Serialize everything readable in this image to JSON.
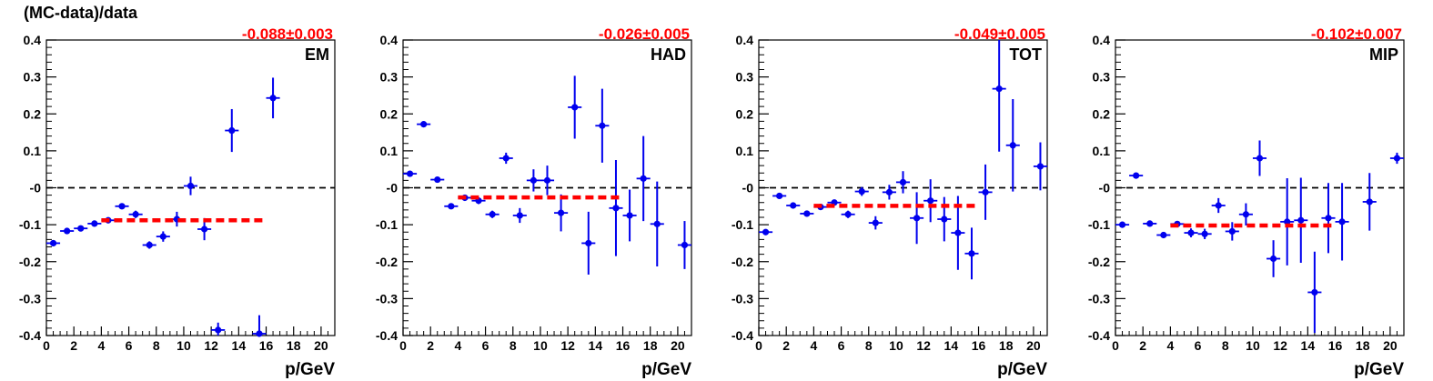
{
  "figure": {
    "ylabel": "(MC-data)/data",
    "xlabel": "p/GeV"
  },
  "style": {
    "marker_color": "#0000ee",
    "fit_color": "#ff0000",
    "zero_line_color": "#000000"
  },
  "chart_data": [
    {
      "type": "scatter",
      "panel_label": "EM",
      "fit_text": "-0.088±0.003",
      "fit_value": -0.088,
      "fit_range": [
        4,
        16
      ],
      "xlabel": "p/GeV",
      "xlim": [
        0,
        21
      ],
      "ylim": [
        -0.4,
        0.4
      ],
      "xticks": [
        0,
        2,
        4,
        6,
        8,
        10,
        12,
        14,
        16,
        18,
        20
      ],
      "yticks": [
        -0.4,
        -0.3,
        -0.2,
        -0.1,
        0,
        0.1,
        0.2,
        0.3,
        0.4
      ],
      "ytick_labels": [
        "-0.4",
        "-0.3",
        "-0.2",
        "-0.1",
        "-0",
        "0.1",
        "0.2",
        "0.3",
        "0.4"
      ],
      "points": [
        {
          "x": 0.5,
          "y": -0.15,
          "err": 0.008
        },
        {
          "x": 1.5,
          "y": -0.117,
          "err": 0.006
        },
        {
          "x": 2.5,
          "y": -0.11,
          "err": 0.006
        },
        {
          "x": 3.5,
          "y": -0.097,
          "err": 0.007
        },
        {
          "x": 4.5,
          "y": -0.088,
          "err": 0.008
        },
        {
          "x": 5.5,
          "y": -0.05,
          "err": 0.008
        },
        {
          "x": 6.5,
          "y": -0.072,
          "err": 0.01
        },
        {
          "x": 7.5,
          "y": -0.155,
          "err": 0.01
        },
        {
          "x": 8.5,
          "y": -0.132,
          "err": 0.014
        },
        {
          "x": 9.5,
          "y": -0.085,
          "err": 0.02
        },
        {
          "x": 10.5,
          "y": 0.005,
          "err": 0.025
        },
        {
          "x": 11.5,
          "y": -0.112,
          "err": 0.03
        },
        {
          "x": 12.5,
          "y": -0.385,
          "err": 0.02
        },
        {
          "x": 13.5,
          "y": 0.155,
          "err": 0.058
        },
        {
          "x": 15.5,
          "y": -0.395,
          "err": 0.05
        },
        {
          "x": 16.5,
          "y": 0.243,
          "err": 0.055
        }
      ]
    },
    {
      "type": "scatter",
      "panel_label": "HAD",
      "fit_text": "-0.026±0.005",
      "fit_value": -0.026,
      "fit_range": [
        4,
        16
      ],
      "xlabel": "p/GeV",
      "xlim": [
        0,
        21
      ],
      "ylim": [
        -0.4,
        0.4
      ],
      "xticks": [
        0,
        2,
        4,
        6,
        8,
        10,
        12,
        14,
        16,
        18,
        20
      ],
      "yticks": [
        -0.4,
        -0.3,
        -0.2,
        -0.1,
        0,
        0.1,
        0.2,
        0.3,
        0.4
      ],
      "ytick_labels": [
        "-0.4",
        "-0.3",
        "-0.2",
        "-0.1",
        "-0",
        "0.1",
        "0.2",
        "0.3",
        "0.4"
      ],
      "points": [
        {
          "x": 0.5,
          "y": 0.038,
          "err": 0.006
        },
        {
          "x": 1.5,
          "y": 0.172,
          "err": 0.005
        },
        {
          "x": 2.5,
          "y": 0.022,
          "err": 0.006
        },
        {
          "x": 3.5,
          "y": -0.05,
          "err": 0.006
        },
        {
          "x": 4.5,
          "y": -0.027,
          "err": 0.007
        },
        {
          "x": 5.5,
          "y": -0.035,
          "err": 0.009
        },
        {
          "x": 6.5,
          "y": -0.072,
          "err": 0.01
        },
        {
          "x": 7.5,
          "y": 0.08,
          "err": 0.015
        },
        {
          "x": 8.5,
          "y": -0.075,
          "err": 0.02
        },
        {
          "x": 9.5,
          "y": 0.02,
          "err": 0.03
        },
        {
          "x": 10.5,
          "y": 0.02,
          "err": 0.04
        },
        {
          "x": 11.5,
          "y": -0.068,
          "err": 0.05
        },
        {
          "x": 12.5,
          "y": 0.218,
          "err": 0.085
        },
        {
          "x": 13.5,
          "y": -0.15,
          "err": 0.085
        },
        {
          "x": 14.5,
          "y": 0.168,
          "err": 0.1
        },
        {
          "x": 15.5,
          "y": -0.055,
          "err": 0.13
        },
        {
          "x": 16.5,
          "y": -0.075,
          "err": 0.07
        },
        {
          "x": 17.5,
          "y": 0.025,
          "err": 0.115
        },
        {
          "x": 18.5,
          "y": -0.098,
          "err": 0.115
        },
        {
          "x": 20.5,
          "y": -0.155,
          "err": 0.065
        }
      ]
    },
    {
      "type": "scatter",
      "panel_label": "TOT",
      "fit_text": "-0.049±0.005",
      "fit_value": -0.049,
      "fit_range": [
        4,
        16
      ],
      "xlabel": "p/GeV",
      "xlim": [
        0,
        21
      ],
      "ylim": [
        -0.4,
        0.4
      ],
      "xticks": [
        0,
        2,
        4,
        6,
        8,
        10,
        12,
        14,
        16,
        18,
        20
      ],
      "yticks": [
        -0.4,
        -0.3,
        -0.2,
        -0.1,
        0,
        0.1,
        0.2,
        0.3,
        0.4
      ],
      "ytick_labels": [
        "-0.4",
        "-0.3",
        "-0.2",
        "-0.1",
        "-0",
        "0.1",
        "0.2",
        "0.3",
        "0.4"
      ],
      "points": [
        {
          "x": 0.5,
          "y": -0.12,
          "err": 0.006
        },
        {
          "x": 1.5,
          "y": -0.022,
          "err": 0.005
        },
        {
          "x": 2.5,
          "y": -0.048,
          "err": 0.005
        },
        {
          "x": 3.5,
          "y": -0.07,
          "err": 0.006
        },
        {
          "x": 4.5,
          "y": -0.052,
          "err": 0.007
        },
        {
          "x": 5.5,
          "y": -0.04,
          "err": 0.008
        },
        {
          "x": 6.5,
          "y": -0.072,
          "err": 0.01
        },
        {
          "x": 7.5,
          "y": -0.01,
          "err": 0.012
        },
        {
          "x": 8.5,
          "y": -0.095,
          "err": 0.018
        },
        {
          "x": 9.5,
          "y": -0.012,
          "err": 0.02
        },
        {
          "x": 10.5,
          "y": 0.015,
          "err": 0.03
        },
        {
          "x": 11.5,
          "y": -0.082,
          "err": 0.07
        },
        {
          "x": 12.5,
          "y": -0.035,
          "err": 0.058
        },
        {
          "x": 13.5,
          "y": -0.085,
          "err": 0.06
        },
        {
          "x": 14.5,
          "y": -0.122,
          "err": 0.1
        },
        {
          "x": 15.5,
          "y": -0.178,
          "err": 0.07
        },
        {
          "x": 16.5,
          "y": -0.012,
          "err": 0.075
        },
        {
          "x": 17.5,
          "y": 0.268,
          "err": 0.17
        },
        {
          "x": 18.5,
          "y": 0.115,
          "err": 0.125
        },
        {
          "x": 20.5,
          "y": 0.058,
          "err": 0.065
        }
      ]
    },
    {
      "type": "scatter",
      "panel_label": "MIP",
      "fit_text": "-0.102±0.007",
      "fit_value": -0.102,
      "fit_range": [
        4,
        16
      ],
      "xlabel": "p/GeV",
      "xlim": [
        0,
        21
      ],
      "ylim": [
        -0.4,
        0.4
      ],
      "xticks": [
        0,
        2,
        4,
        6,
        8,
        10,
        12,
        14,
        16,
        18,
        20
      ],
      "yticks": [
        -0.4,
        -0.3,
        -0.2,
        -0.1,
        0,
        0.1,
        0.2,
        0.3,
        0.4
      ],
      "ytick_labels": [
        "-0.4",
        "-0.3",
        "-0.2",
        "-0.1",
        "-0",
        "0.1",
        "0.2",
        "0.3",
        "0.4"
      ],
      "points": [
        {
          "x": 0.5,
          "y": -0.1,
          "err": 0.006
        },
        {
          "x": 1.5,
          "y": 0.033,
          "err": 0.005
        },
        {
          "x": 2.5,
          "y": -0.097,
          "err": 0.006
        },
        {
          "x": 3.5,
          "y": -0.128,
          "err": 0.006
        },
        {
          "x": 4.5,
          "y": -0.098,
          "err": 0.008
        },
        {
          "x": 5.5,
          "y": -0.122,
          "err": 0.012
        },
        {
          "x": 6.5,
          "y": -0.125,
          "err": 0.014
        },
        {
          "x": 7.5,
          "y": -0.048,
          "err": 0.02
        },
        {
          "x": 8.5,
          "y": -0.118,
          "err": 0.025
        },
        {
          "x": 9.5,
          "y": -0.072,
          "err": 0.03
        },
        {
          "x": 10.5,
          "y": 0.08,
          "err": 0.048
        },
        {
          "x": 11.5,
          "y": -0.192,
          "err": 0.05
        },
        {
          "x": 12.5,
          "y": -0.092,
          "err": 0.118
        },
        {
          "x": 13.5,
          "y": -0.088,
          "err": 0.115
        },
        {
          "x": 14.5,
          "y": -0.283,
          "err": 0.11
        },
        {
          "x": 15.5,
          "y": -0.082,
          "err": 0.095
        },
        {
          "x": 16.5,
          "y": -0.092,
          "err": 0.105
        },
        {
          "x": 18.5,
          "y": -0.038,
          "err": 0.078
        },
        {
          "x": 20.5,
          "y": 0.08,
          "err": 0.015
        }
      ]
    }
  ]
}
